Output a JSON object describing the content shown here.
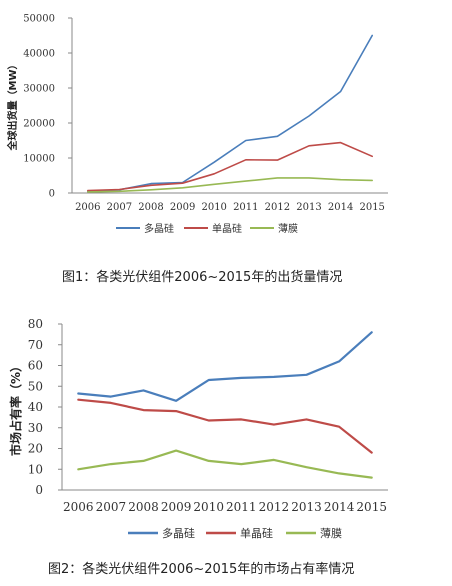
{
  "colors": {
    "mono": "#4a7ebb",
    "multi": "#be4b48",
    "thin": "#98b954"
  },
  "chart_data": [
    {
      "type": "line",
      "x": [
        2006,
        2007,
        2008,
        2009,
        2010,
        2011,
        2012,
        2013,
        2014,
        2015
      ],
      "ylabel": "全球出货量（MW）",
      "ylim": [
        0,
        50000
      ],
      "yticks": [
        "0",
        "10000",
        "20000",
        "30000",
        "40000",
        "50000"
      ],
      "grid": false,
      "legend": "bottom",
      "series": [
        {
          "name": "多晶硅",
          "color": "#4a7ebb",
          "values": [
            500,
            900,
            2700,
            3000,
            8800,
            15000,
            16200,
            22000,
            29000,
            45000
          ]
        },
        {
          "name": "单晶硅",
          "color": "#be4b48",
          "values": [
            700,
            1000,
            2200,
            2800,
            5500,
            9500,
            9400,
            13500,
            14400,
            10500
          ]
        },
        {
          "name": "薄膜",
          "color": "#98b954",
          "values": [
            300,
            500,
            900,
            1500,
            2500,
            3400,
            4300,
            4300,
            3800,
            3600
          ]
        }
      ],
      "caption": "图1：各类光伏组件2006~2015年的出货量情况"
    },
    {
      "type": "line",
      "x": [
        2006,
        2007,
        2008,
        2009,
        2010,
        2011,
        2012,
        2013,
        2014,
        2015
      ],
      "ylabel": "市场占有率（%）",
      "ylim": [
        0,
        80
      ],
      "yticks": [
        "0",
        "10",
        "20",
        "30",
        "40",
        "50",
        "60",
        "70",
        "80"
      ],
      "grid": false,
      "legend": "bottom",
      "series": [
        {
          "name": "多晶硅",
          "color": "#4a7ebb",
          "values": [
            46.5,
            45.0,
            48.0,
            43.0,
            53.0,
            54.0,
            54.5,
            55.5,
            62.0,
            76.0
          ]
        },
        {
          "name": "单晶硅",
          "color": "#be4b48",
          "values": [
            43.5,
            42.0,
            38.5,
            38.0,
            33.5,
            34.0,
            31.5,
            34.0,
            30.5,
            18.0
          ]
        },
        {
          "name": "薄膜",
          "color": "#98b954",
          "values": [
            10.0,
            12.5,
            14.0,
            19.0,
            14.0,
            12.5,
            14.5,
            11.0,
            8.0,
            6.0
          ]
        }
      ],
      "caption": "图2：各类光伏组件2006~2015年的市场占有率情况"
    }
  ]
}
